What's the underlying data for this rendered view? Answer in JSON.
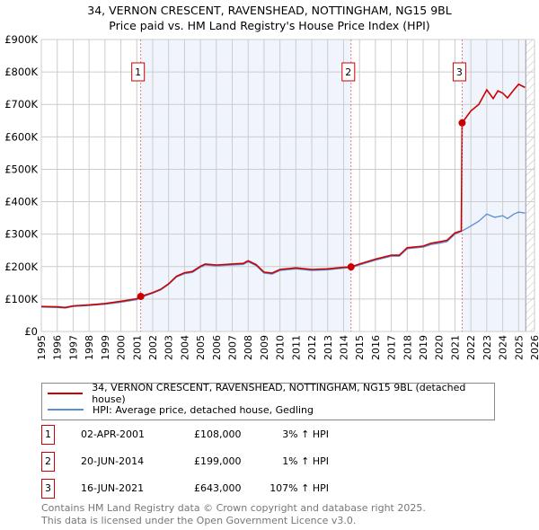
{
  "title": "34, VERNON CRESCENT, RAVENSHEAD, NOTTINGHAM, NG15 9BL",
  "subtitle": "Price paid vs. HM Land Registry's House Price Index (HPI)",
  "chart_data": {
    "type": "line",
    "xlim": [
      1995,
      2026
    ],
    "ylim": [
      0,
      900000
    ],
    "x_ticks": [
      "1995",
      "1996",
      "1997",
      "1998",
      "1999",
      "2000",
      "2001",
      "2002",
      "2003",
      "2004",
      "2005",
      "2006",
      "2007",
      "2008",
      "2009",
      "2010",
      "2011",
      "2012",
      "2013",
      "2014",
      "2015",
      "2016",
      "2017",
      "2018",
      "2019",
      "2020",
      "2021",
      "2022",
      "2023",
      "2024",
      "2025",
      "2026"
    ],
    "y_ticks": [
      {
        "v": 0,
        "label": "£0"
      },
      {
        "v": 100000,
        "label": "£100K"
      },
      {
        "v": 200000,
        "label": "£200K"
      },
      {
        "v": 300000,
        "label": "£300K"
      },
      {
        "v": 400000,
        "label": "£400K"
      },
      {
        "v": 500000,
        "label": "£500K"
      },
      {
        "v": 600000,
        "label": "£600K"
      },
      {
        "v": 700000,
        "label": "£700K"
      },
      {
        "v": 800000,
        "label": "£800K"
      },
      {
        "v": 900000,
        "label": "£900K"
      }
    ],
    "grid": true,
    "series": [
      {
        "name": "34, VERNON CRESCENT, RAVENSHEAD, NOTTINGHAM, NG15 9BL (detached house)",
        "color": "#cc0000",
        "x": [
          1995,
          1996,
          1996.5,
          1997,
          1998,
          1999,
          2000,
          2001,
          2001.25,
          2002,
          2002.5,
          2003,
          2003.5,
          2004,
          2004.5,
          2005,
          2005.3,
          2006,
          2007,
          2007.7,
          2008,
          2008.5,
          2009,
          2009.5,
          2010,
          2011,
          2012,
          2013,
          2014,
          2014.47,
          2015,
          2016,
          2017,
          2017.5,
          2018,
          2019,
          2019.5,
          2020,
          2020.5,
          2021,
          2021.4,
          2021.45,
          2022,
          2022.5,
          2023,
          2023.4,
          2023.7,
          2024,
          2024.3,
          2024.7,
          2025,
          2025.4
        ],
        "y": [
          77000,
          76000,
          74000,
          79000,
          82000,
          86000,
          93000,
          101000,
          108000,
          120000,
          130000,
          147000,
          170000,
          181000,
          185000,
          201000,
          208000,
          205000,
          208000,
          210000,
          218000,
          206000,
          183000,
          180000,
          191000,
          196000,
          191000,
          193000,
          198000,
          199000,
          208000,
          223000,
          235000,
          235000,
          258000,
          263000,
          272000,
          276000,
          281000,
          304000,
          310000,
          643000,
          680000,
          700000,
          745000,
          718000,
          742000,
          735000,
          720000,
          745000,
          762000,
          752000
        ]
      },
      {
        "name": "HPI: Average price, detached house, Gedling",
        "color": "#5b8fd4",
        "x": [
          1995,
          1996,
          1996.5,
          1997,
          1998,
          1999,
          2000,
          2001,
          2001.25,
          2002,
          2002.5,
          2003,
          2003.5,
          2004,
          2004.5,
          2005,
          2005.3,
          2006,
          2007,
          2007.7,
          2008,
          2008.5,
          2009,
          2009.5,
          2010,
          2011,
          2012,
          2013,
          2014,
          2014.47,
          2015,
          2016,
          2017,
          2017.5,
          2018,
          2019,
          2019.5,
          2020,
          2020.5,
          2021,
          2021.45,
          2022,
          2022.5,
          2023,
          2023.5,
          2024,
          2024.3,
          2024.7,
          2025,
          2025.4
        ],
        "y": [
          75000,
          74000,
          72000,
          77000,
          80000,
          84000,
          90000,
          98000,
          105000,
          118000,
          128000,
          145000,
          168000,
          178000,
          182000,
          198000,
          205000,
          202000,
          205000,
          207000,
          215000,
          203000,
          180000,
          177000,
          188000,
          193000,
          188000,
          190000,
          195000,
          197000,
          205000,
          220000,
          232000,
          232000,
          255000,
          260000,
          268000,
          272000,
          277000,
          300000,
          310000,
          325000,
          340000,
          362000,
          352000,
          357000,
          348000,
          362000,
          368000,
          365000
        ]
      }
    ],
    "sales": [
      {
        "label": "1",
        "x": 2001.25,
        "y": 108000
      },
      {
        "label": "2",
        "x": 2014.47,
        "y": 199000
      },
      {
        "label": "3",
        "x": 2021.45,
        "y": 643000
      }
    ],
    "legend_placement": "bottom"
  },
  "legend": {
    "property": "34, VERNON CRESCENT, RAVENSHEAD, NOTTINGHAM, NG15 9BL (detached house)",
    "hpi": "HPI: Average price, detached house, Gedling"
  },
  "transactions": [
    {
      "num": "1",
      "date": "02-APR-2001",
      "price": "£108,000",
      "hpi": "3% ↑ HPI"
    },
    {
      "num": "2",
      "date": "20-JUN-2014",
      "price": "£199,000",
      "hpi": "1% ↑ HPI"
    },
    {
      "num": "3",
      "date": "16-JUN-2021",
      "price": "£643,000",
      "hpi": "107% ↑ HPI"
    }
  ],
  "footer": {
    "line1": "Contains HM Land Registry data © Crown copyright and database right 2025.",
    "line2": "This data is licensed under the Open Government Licence v3.0."
  }
}
